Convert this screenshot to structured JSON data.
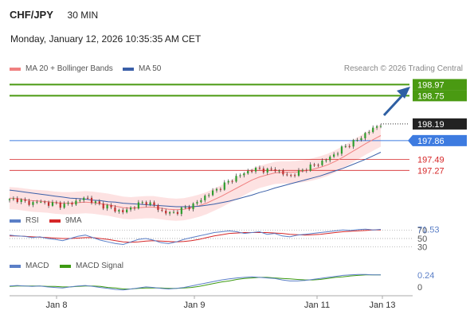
{
  "header": {
    "pair": "CHF/JPY",
    "timeframe": "30 MIN",
    "datetime": "Monday, January 12, 2026 10:35:35 AM CET"
  },
  "legend": {
    "ma20_label": "MA 20 + Bollinger Bands",
    "ma50_label": "MA 50",
    "attribution": "Research © 2026 Trading Central",
    "rsi_label": "RSI",
    "rsi_ma_label": "9MA",
    "macd_label": "MACD",
    "macd_signal_label": "MACD Signal"
  },
  "colors": {
    "candle_up": "#2e9e2e",
    "candle_down": "#c03030",
    "ma20": "#f08080",
    "bollinger_fill": "#fde2e2",
    "ma50": "#3a5fa8",
    "target_green": "#4a9a12",
    "pivot_blue": "#3d7be0",
    "support_red": "#d62728",
    "arrow": "#2e5fa3",
    "current_badge": "#222222",
    "rsi": "#5b7fc7",
    "rsi_ma": "#d62728",
    "macd": "#5b7fc7",
    "macd_signal": "#3d9a12"
  },
  "chart_data": {
    "type": "candlestick",
    "x_tick_labels": [
      "Jan 8",
      "Jan 9",
      "Jan 11",
      "Jan 13"
    ],
    "y_range": [
      196.55,
      199.15
    ],
    "levels": [
      {
        "name": "target-1",
        "value": 198.97,
        "label": "198.97",
        "style": "green-badge"
      },
      {
        "name": "target-2",
        "value": 198.75,
        "label": "198.75",
        "style": "green-badge"
      },
      {
        "name": "current",
        "value": 198.19,
        "label": "198.19",
        "style": "dark-badge"
      },
      {
        "name": "pivot",
        "value": 197.86,
        "label": "197.86",
        "style": "blue-badge"
      },
      {
        "name": "support-1",
        "value": 197.49,
        "label": "197.49",
        "style": "red-text"
      },
      {
        "name": "support-2",
        "value": 197.27,
        "label": "197.27",
        "style": "red-text"
      }
    ],
    "price_path": [
      196.68,
      196.7,
      196.64,
      196.62,
      196.66,
      196.6,
      196.62,
      196.57,
      196.62,
      196.66,
      196.74,
      196.65,
      196.58,
      196.55,
      196.48,
      196.45,
      196.52,
      196.6,
      196.64,
      196.58,
      196.46,
      196.42,
      196.44,
      196.52,
      196.56,
      196.66,
      196.78,
      196.86,
      196.95,
      197.06,
      197.14,
      197.22,
      197.28,
      197.3,
      197.26,
      197.3,
      197.2,
      197.16,
      197.22,
      197.3,
      197.36,
      197.42,
      197.5,
      197.6,
      197.72,
      197.8,
      197.88,
      198.0,
      198.1,
      198.19
    ],
    "ma20_path": [
      196.72,
      196.71,
      196.69,
      196.67,
      196.66,
      196.65,
      196.63,
      196.62,
      196.62,
      196.63,
      196.64,
      196.63,
      196.61,
      196.59,
      196.56,
      196.53,
      196.52,
      196.53,
      196.54,
      196.54,
      196.52,
      196.5,
      196.49,
      196.5,
      196.53,
      196.57,
      196.62,
      196.69,
      196.76,
      196.84,
      196.92,
      197.0,
      197.08,
      197.14,
      197.18,
      197.22,
      197.23,
      197.23,
      197.24,
      197.26,
      197.29,
      197.33,
      197.38,
      197.45,
      197.53,
      197.62,
      197.71,
      197.8,
      197.88,
      197.96
    ],
    "ma50_path": [
      196.88,
      196.86,
      196.84,
      196.82,
      196.8,
      196.78,
      196.76,
      196.74,
      196.72,
      196.71,
      196.7,
      196.68,
      196.67,
      196.65,
      196.64,
      196.62,
      196.61,
      196.6,
      196.59,
      196.58,
      196.57,
      196.56,
      196.55,
      196.55,
      196.55,
      196.56,
      196.58,
      196.6,
      196.63,
      196.66,
      196.7,
      196.74,
      196.78,
      196.83,
      196.87,
      196.92,
      196.96,
      197.0,
      197.04,
      197.08,
      197.12,
      197.16,
      197.21,
      197.26,
      197.31,
      197.37,
      197.43,
      197.49,
      197.56,
      197.63
    ],
    "bollinger_width": 0.22,
    "rsi": {
      "label": "RSI",
      "value_label": "71.53",
      "levels": [
        "70",
        "50",
        "30"
      ],
      "path": [
        58,
        56,
        55,
        52,
        54,
        50,
        48,
        45,
        50,
        55,
        58,
        52,
        46,
        42,
        38,
        36,
        42,
        48,
        50,
        46,
        40,
        38,
        42,
        48,
        52,
        56,
        60,
        64,
        66,
        68,
        66,
        62,
        64,
        66,
        60,
        62,
        56,
        54,
        58,
        60,
        62,
        64,
        66,
        68,
        70,
        69,
        71,
        72,
        70,
        71.53
      ],
      "ma_path": [
        56,
        56,
        55,
        54,
        53,
        52,
        51,
        50,
        50,
        51,
        52,
        52,
        50,
        48,
        45,
        42,
        41,
        42,
        44,
        45,
        44,
        43,
        42,
        43,
        45,
        48,
        52,
        56,
        59,
        62,
        63,
        64,
        64,
        64,
        64,
        63,
        62,
        60,
        59,
        58,
        59,
        60,
        62,
        64,
        66,
        67,
        68,
        69,
        70,
        70
      ]
    },
    "macd": {
      "label": "MACD",
      "value_label": "0.24",
      "zero_label": "0",
      "path": [
        0.02,
        0.03,
        0.02,
        0.01,
        0.02,
        0.0,
        -0.01,
        -0.02,
        0.0,
        0.02,
        0.03,
        0.01,
        -0.01,
        -0.03,
        -0.05,
        -0.06,
        -0.04,
        -0.02,
        0.0,
        -0.01,
        -0.03,
        -0.04,
        -0.03,
        -0.01,
        0.02,
        0.05,
        0.08,
        0.11,
        0.14,
        0.16,
        0.18,
        0.19,
        0.2,
        0.19,
        0.18,
        0.17,
        0.14,
        0.12,
        0.12,
        0.13,
        0.15,
        0.17,
        0.19,
        0.21,
        0.23,
        0.24,
        0.25,
        0.25,
        0.24,
        0.24
      ],
      "signal_path": [
        0.01,
        0.02,
        0.02,
        0.02,
        0.02,
        0.01,
        0.01,
        0.0,
        0.0,
        0.01,
        0.02,
        0.02,
        0.01,
        -0.01,
        -0.02,
        -0.04,
        -0.04,
        -0.03,
        -0.02,
        -0.02,
        -0.02,
        -0.03,
        -0.03,
        -0.02,
        -0.01,
        0.01,
        0.04,
        0.07,
        0.1,
        0.12,
        0.15,
        0.17,
        0.18,
        0.19,
        0.19,
        0.18,
        0.17,
        0.16,
        0.15,
        0.14,
        0.14,
        0.15,
        0.17,
        0.19,
        0.2,
        0.22,
        0.23,
        0.24,
        0.24,
        0.24
      ]
    }
  }
}
